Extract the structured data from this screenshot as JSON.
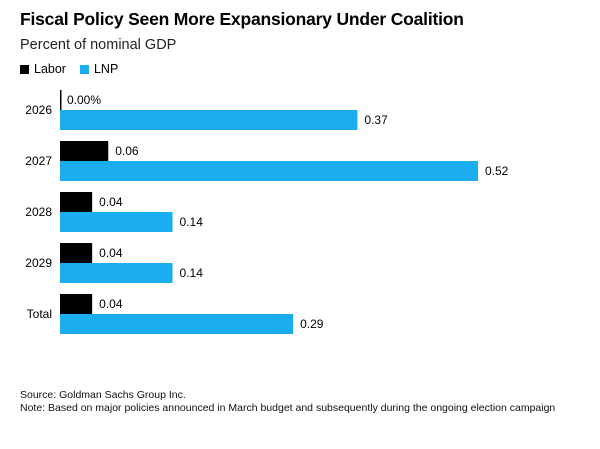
{
  "chart_data": {
    "type": "bar",
    "orientation": "horizontal",
    "title": "Fiscal Policy Seen More Expansionary Under Coalition",
    "subtitle": "Percent of nominal GDP",
    "categories": [
      "2026",
      "2027",
      "2028",
      "2029",
      "Total"
    ],
    "series": [
      {
        "name": "Labor",
        "color": "#000000",
        "values": [
          0.0,
          0.06,
          0.04,
          0.04,
          0.04
        ],
        "labels": [
          "0.00%",
          "0.06",
          "0.04",
          "0.04",
          "0.04"
        ]
      },
      {
        "name": "LNP",
        "color": "#1AADF0",
        "values": [
          0.37,
          0.52,
          0.14,
          0.14,
          0.29
        ],
        "labels": [
          "0.37",
          "0.52",
          "0.14",
          "0.14",
          "0.29"
        ]
      }
    ],
    "xlim": [
      0,
      0.52
    ],
    "grid": false,
    "legend": "top-left"
  },
  "footer": {
    "source": "Source: Goldman Sachs Group Inc.",
    "note": "Note: Based on major policies announced in March budget and subsequently during the ongoing election campaign"
  }
}
